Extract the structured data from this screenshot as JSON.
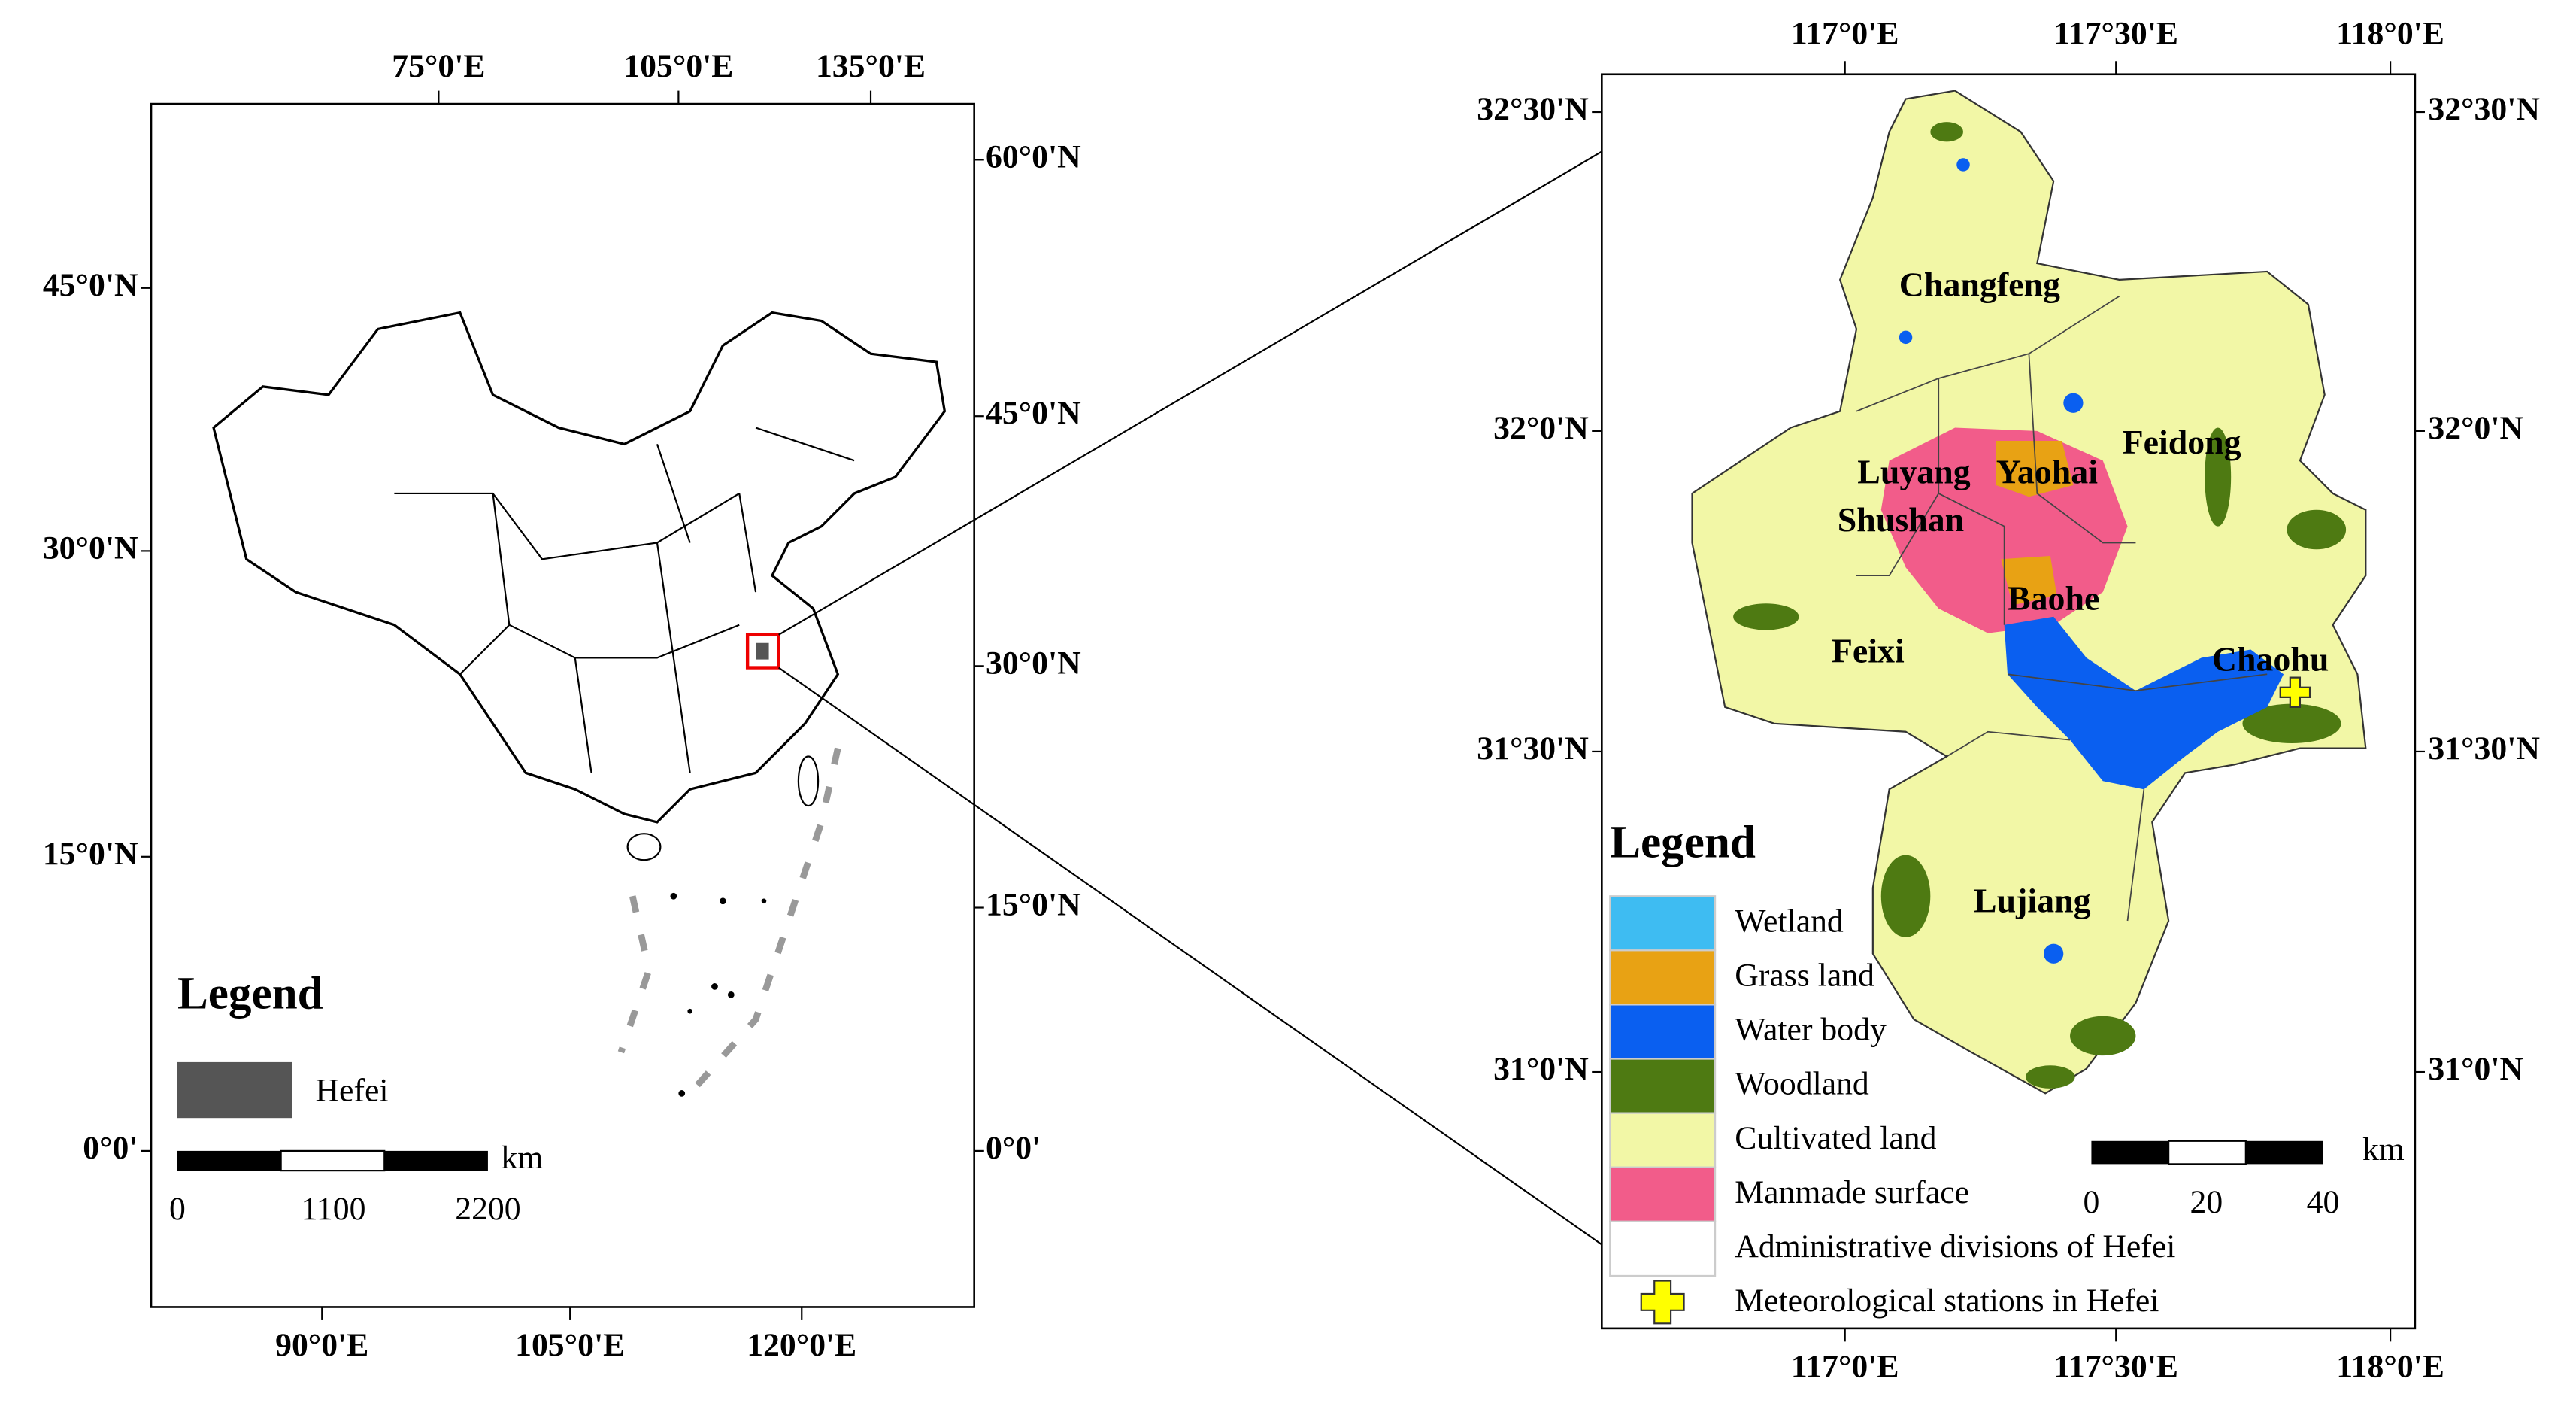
{
  "left_map": {
    "top_labels": [
      "75°0'E",
      "105°0'E",
      "135°0'E"
    ],
    "bottom_labels": [
      "90°0'E",
      "105°0'E",
      "120°0'E"
    ],
    "left_labels": [
      "45°0'N",
      "30°0'N",
      "15°0'N",
      "0°0'"
    ],
    "right_labels": [
      "60°0'N",
      "45°0'N",
      "30°0'N",
      "15°0'N",
      "0°0'"
    ],
    "legend": {
      "title": "Legend",
      "items": [
        {
          "label": "Hefei",
          "color": "#555555"
        }
      ]
    },
    "scale": {
      "unit": "km",
      "labels": [
        "0",
        "1100",
        "2200"
      ]
    }
  },
  "right_map": {
    "top_labels": [
      "117°0'E",
      "117°30'E",
      "118°0'E"
    ],
    "bottom_labels": [
      "117°0'E",
      "117°30'E",
      "118°0'E"
    ],
    "left_labels": [
      "32°30'N",
      "32°0'N",
      "31°30'N",
      "31°0'N"
    ],
    "right_labels": [
      "32°30'N",
      "32°0'N",
      "31°30'N",
      "31°0'N"
    ],
    "places": [
      "Changfeng",
      "Feidong",
      "Luyang",
      "Yaohai",
      "Shushan",
      "Baohe",
      "Feixi",
      "Chaohu",
      "Lujiang"
    ],
    "legend": {
      "title": "Legend",
      "items": [
        {
          "label": "Wetland",
          "color": "#3ebcf2"
        },
        {
          "label": "Grass land",
          "color": "#e8a214"
        },
        {
          "label": "Water body",
          "color": "#0a5ff0"
        },
        {
          "label": "Woodland",
          "color": "#4e7a12"
        },
        {
          "label": "Cultivated land",
          "color": "#f2f7a6"
        },
        {
          "label": "Manmade surface",
          "color": "#f25c8a"
        },
        {
          "label": "Administrative divisions of Hefei",
          "color": "#ffffff"
        },
        {
          "label": "Meteorological stations in Hefei",
          "color": "#ffff00",
          "symbol": "cross"
        }
      ]
    },
    "scale": {
      "unit": "km",
      "labels": [
        "0",
        "20",
        "40"
      ]
    }
  }
}
